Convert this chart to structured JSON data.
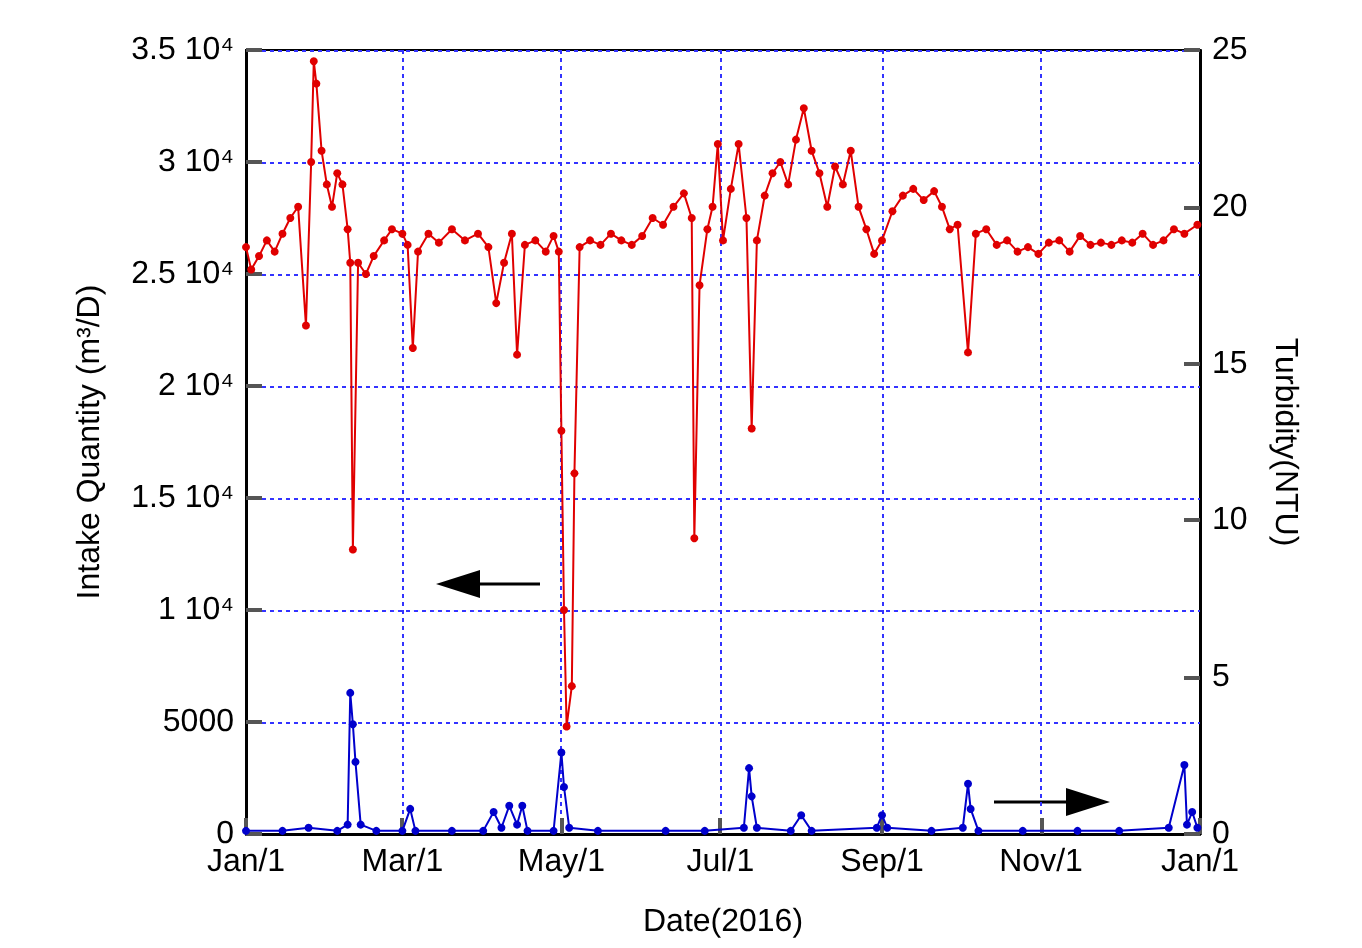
{
  "chart_data": {
    "type": "line",
    "xlabel": "Date(2016)",
    "ylabel": "Intake Quantity (m³/D)",
    "y2label": "Turbidity(NTU)",
    "xlim": [
      "2016-01-01",
      "2017-01-01"
    ],
    "xticks": [
      {
        "value": "2016-01-01",
        "label": "Jan/1"
      },
      {
        "value": "2016-03-01",
        "label": "Mar/1"
      },
      {
        "value": "2016-05-01",
        "label": "May/1"
      },
      {
        "value": "2016-07-01",
        "label": "Jul/1"
      },
      {
        "value": "2016-09-01",
        "label": "Sep/1"
      },
      {
        "value": "2016-11-01",
        "label": "Nov/1"
      },
      {
        "value": "2017-01-01",
        "label": "Jan/1"
      }
    ],
    "ylim": [
      0,
      35000
    ],
    "yticks": [
      0,
      5000,
      {
        "value": 10000,
        "label": "1 10⁴"
      },
      {
        "value": 15000,
        "label": "1.5 10⁴"
      },
      {
        "value": 20000,
        "label": "2 10⁴"
      },
      {
        "value": 25000,
        "label": "2.5 10⁴"
      },
      {
        "value": 30000,
        "label": "3 10⁴"
      },
      {
        "value": 35000,
        "label": "3.5 10⁴"
      }
    ],
    "y2lim": [
      0,
      25
    ],
    "y2ticks": [
      0,
      5,
      10,
      15,
      20,
      25
    ],
    "grid": true,
    "marker": "circle",
    "line_style": "solid",
    "series": [
      {
        "color": "#e00000",
        "x": [
          "2016-01-01",
          "2016-01-03",
          "2016-01-06",
          "2016-01-09",
          "2016-01-12",
          "2016-01-15",
          "2016-01-18",
          "2016-01-21",
          "2016-01-24",
          "2016-01-26",
          "2016-01-27",
          "2016-01-28",
          "2016-01-30",
          "2016-02-01",
          "2016-02-03",
          "2016-02-05",
          "2016-02-07",
          "2016-02-09",
          "2016-02-10",
          "2016-02-11",
          "2016-02-13",
          "2016-02-16",
          "2016-02-19",
          "2016-02-23",
          "2016-02-26",
          "2016-03-01",
          "2016-03-03",
          "2016-03-05",
          "2016-03-07",
          "2016-03-11",
          "2016-03-15",
          "2016-03-20",
          "2016-03-25",
          "2016-03-30",
          "2016-04-03",
          "2016-04-06",
          "2016-04-09",
          "2016-04-12",
          "2016-04-14",
          "2016-04-17",
          "2016-04-21",
          "2016-04-25",
          "2016-04-28",
          "2016-04-30",
          "2016-05-01",
          "2016-05-02",
          "2016-05-03",
          "2016-05-05",
          "2016-05-06",
          "2016-05-08",
          "2016-05-12",
          "2016-05-16",
          "2016-05-20",
          "2016-05-24",
          "2016-05-28",
          "2016-06-01",
          "2016-06-05",
          "2016-06-09",
          "2016-06-13",
          "2016-06-17",
          "2016-06-20",
          "2016-06-21",
          "2016-06-23",
          "2016-06-26",
          "2016-06-28",
          "2016-06-30",
          "2016-07-02",
          "2016-07-05",
          "2016-07-08",
          "2016-07-11",
          "2016-07-13",
          "2016-07-15",
          "2016-07-18",
          "2016-07-21",
          "2016-07-24",
          "2016-07-27",
          "2016-07-30",
          "2016-08-02",
          "2016-08-05",
          "2016-08-08",
          "2016-08-11",
          "2016-08-14",
          "2016-08-17",
          "2016-08-20",
          "2016-08-23",
          "2016-08-26",
          "2016-08-29",
          "2016-09-01",
          "2016-09-05",
          "2016-09-09",
          "2016-09-13",
          "2016-09-17",
          "2016-09-21",
          "2016-09-24",
          "2016-09-27",
          "2016-09-30",
          "2016-10-04",
          "2016-10-07",
          "2016-10-11",
          "2016-10-15",
          "2016-10-19",
          "2016-10-23",
          "2016-10-27",
          "2016-10-31",
          "2016-11-04",
          "2016-11-08",
          "2016-11-12",
          "2016-11-16",
          "2016-11-20",
          "2016-11-24",
          "2016-11-28",
          "2016-12-02",
          "2016-12-06",
          "2016-12-10",
          "2016-12-14",
          "2016-12-18",
          "2016-12-22",
          "2016-12-26",
          "2016-12-31"
        ],
        "values": [
          26200,
          25200,
          25800,
          26500,
          26000,
          26800,
          27500,
          28000,
          22700,
          30000,
          34500,
          33500,
          30500,
          29000,
          28000,
          29500,
          29000,
          27000,
          25500,
          12700,
          25500,
          25000,
          25800,
          26500,
          27000,
          26800,
          26300,
          21700,
          26000,
          26800,
          26400,
          27000,
          26500,
          26800,
          26200,
          23700,
          25500,
          26800,
          21400,
          26300,
          26500,
          26000,
          26700,
          26000,
          18000,
          10000,
          4800,
          6600,
          16100,
          26200,
          26500,
          26300,
          26800,
          26500,
          26300,
          26700,
          27500,
          27200,
          28000,
          28600,
          27500,
          13200,
          24500,
          27000,
          28000,
          30800,
          26500,
          28800,
          30800,
          27500,
          18100,
          26500,
          28500,
          29500,
          30000,
          29000,
          31000,
          32400,
          30500,
          29500,
          28000,
          29800,
          29000,
          30500,
          28000,
          27000,
          25900,
          26500,
          27800,
          28500,
          28800,
          28300,
          28700,
          28000,
          27000,
          27200,
          21500,
          26800,
          27000,
          26300,
          26500,
          26000,
          26200,
          25900,
          26400,
          26500,
          26000,
          26700,
          26300,
          26400,
          26300,
          26500,
          26400,
          26800,
          26300,
          26500,
          27000,
          26800,
          27200
        ]
      },
      {
        "color": "#0000cc",
        "axis": "y2",
        "x": [
          "2016-01-01",
          "2016-01-15",
          "2016-01-25",
          "2016-02-05",
          "2016-02-09",
          "2016-02-10",
          "2016-02-11",
          "2016-02-12",
          "2016-02-14",
          "2016-02-20",
          "2016-03-01",
          "2016-03-04",
          "2016-03-06",
          "2016-03-20",
          "2016-04-01",
          "2016-04-05",
          "2016-04-08",
          "2016-04-11",
          "2016-04-14",
          "2016-04-16",
          "2016-04-18",
          "2016-04-28",
          "2016-05-01",
          "2016-05-02",
          "2016-05-04",
          "2016-05-15",
          "2016-06-10",
          "2016-06-25",
          "2016-07-10",
          "2016-07-12",
          "2016-07-13",
          "2016-07-15",
          "2016-07-28",
          "2016-08-01",
          "2016-08-05",
          "2016-08-30",
          "2016-09-01",
          "2016-09-03",
          "2016-09-20",
          "2016-10-02",
          "2016-10-04",
          "2016-10-05",
          "2016-10-08",
          "2016-10-25",
          "2016-11-15",
          "2016-12-01",
          "2016-12-20",
          "2016-12-26",
          "2016-12-27",
          "2016-12-29",
          "2016-12-31"
        ],
        "values": [
          0.1,
          0.1,
          0.2,
          0.1,
          0.3,
          4.5,
          3.5,
          2.3,
          0.3,
          0.1,
          0.1,
          0.8,
          0.1,
          0.1,
          0.1,
          0.7,
          0.2,
          0.9,
          0.3,
          0.9,
          0.1,
          0.1,
          2.6,
          1.5,
          0.2,
          0.1,
          0.1,
          0.1,
          0.2,
          2.1,
          1.2,
          0.2,
          0.1,
          0.6,
          0.1,
          0.2,
          0.6,
          0.2,
          0.1,
          0.2,
          1.6,
          0.8,
          0.1,
          0.1,
          0.1,
          0.1,
          0.2,
          2.2,
          0.3,
          0.7,
          0.2
        ]
      }
    ]
  }
}
